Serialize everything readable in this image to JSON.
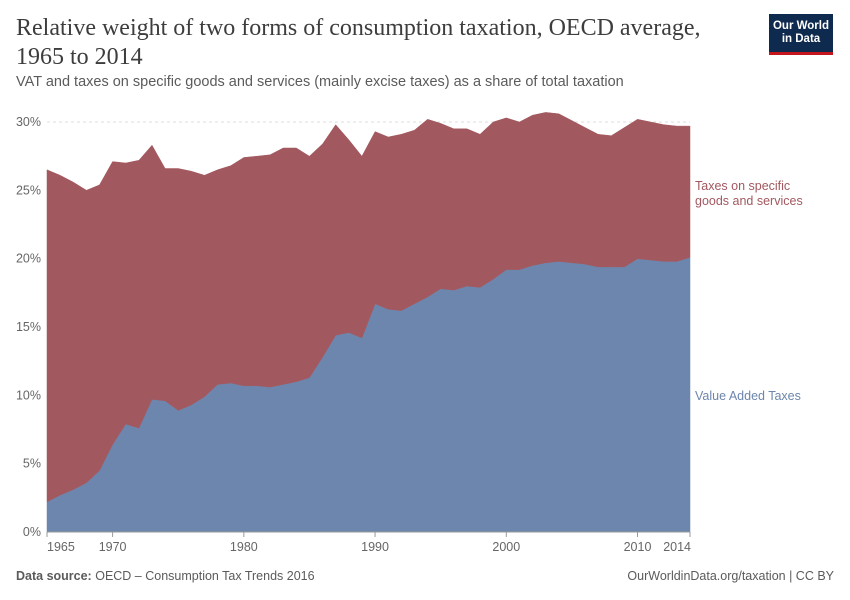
{
  "header": {
    "title": "Relative weight of two forms of consumption taxation, OECD average, 1965 to 2014",
    "subtitle": "VAT and taxes on specific goods and services (mainly excise taxes) as a share of total taxation"
  },
  "logo": {
    "line1": "Our World",
    "line2": "in Data",
    "bg": "#0f2a4f",
    "accent": "#c4161c"
  },
  "footer": {
    "source_label": "Data source:",
    "source_text": "OECD – Consumption Tax Trends 2016",
    "link": "OurWorldinData.org/taxation | CC BY"
  },
  "chart_data": {
    "type": "area",
    "stacked": true,
    "x": [
      1965,
      1966,
      1967,
      1968,
      1969,
      1970,
      1971,
      1972,
      1973,
      1974,
      1975,
      1976,
      1977,
      1978,
      1979,
      1980,
      1981,
      1982,
      1983,
      1984,
      1985,
      1986,
      1987,
      1988,
      1989,
      1990,
      1991,
      1992,
      1993,
      1994,
      1995,
      1996,
      1997,
      1998,
      1999,
      2000,
      2001,
      2002,
      2003,
      2004,
      2005,
      2006,
      2007,
      2008,
      2009,
      2010,
      2011,
      2012,
      2013,
      2014
    ],
    "series": [
      {
        "name": "Value Added Taxes",
        "color": "#6d86ad",
        "values": [
          2.2,
          2.7,
          3.1,
          3.6,
          4.5,
          6.4,
          7.9,
          7.6,
          9.7,
          9.6,
          8.9,
          9.3,
          9.9,
          10.8,
          10.9,
          10.7,
          10.7,
          10.6,
          10.8,
          11.0,
          11.3,
          12.8,
          14.4,
          14.6,
          14.2,
          16.7,
          16.3,
          16.2,
          16.7,
          17.2,
          17.8,
          17.7,
          18.0,
          17.9,
          18.5,
          19.2,
          19.2,
          19.5,
          19.7,
          19.8,
          19.7,
          19.6,
          19.4,
          19.4,
          19.4,
          20.0,
          19.9,
          19.8,
          19.8,
          20.1
        ]
      },
      {
        "name": "Taxes on specific goods and services",
        "color": "#a2585f",
        "values": [
          24.3,
          23.4,
          22.5,
          21.4,
          20.9,
          20.7,
          19.1,
          19.6,
          18.6,
          17.0,
          17.7,
          17.1,
          16.2,
          15.7,
          15.9,
          16.7,
          16.8,
          17.0,
          17.3,
          17.1,
          16.2,
          15.6,
          15.4,
          14.1,
          13.3,
          12.6,
          12.6,
          12.9,
          12.7,
          13.0,
          12.1,
          11.8,
          11.5,
          11.2,
          11.5,
          11.1,
          10.8,
          11.0,
          11.0,
          10.8,
          10.4,
          10.0,
          9.7,
          9.6,
          10.2,
          10.2,
          10.1,
          10.0,
          9.9,
          9.6
        ]
      }
    ],
    "series_labels": {
      "vat": "Value Added Taxes",
      "specific_line1": "Taxes on specific",
      "specific_line2": "goods and services"
    },
    "x_ticks": [
      1965,
      1970,
      1980,
      1990,
      2000,
      2010,
      2014
    ],
    "y_ticks": [
      0,
      5,
      10,
      15,
      20,
      25,
      30
    ],
    "y_tick_labels": [
      "0%",
      "5%",
      "10%",
      "15%",
      "20%",
      "25%",
      "30%"
    ],
    "xlim": [
      1965,
      2014
    ],
    "ylim": [
      0,
      30
    ],
    "grid": true
  }
}
